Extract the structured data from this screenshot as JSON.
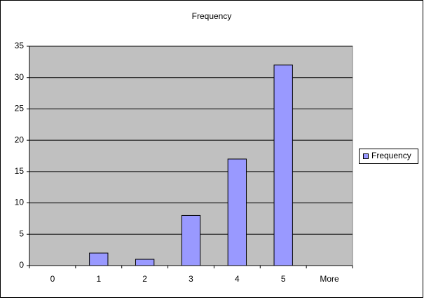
{
  "chart_data": {
    "type": "bar",
    "title": "Frequency",
    "categories": [
      "0",
      "1",
      "2",
      "3",
      "4",
      "5",
      "More"
    ],
    "series": [
      {
        "name": "Frequency",
        "color": "#9999ff",
        "values": [
          0,
          2,
          1,
          8,
          17,
          32,
          0
        ]
      }
    ],
    "ylim": [
      0,
      35
    ],
    "yticks": [
      0,
      5,
      10,
      15,
      20,
      25,
      30,
      35
    ],
    "grid": true,
    "legend": "right"
  }
}
